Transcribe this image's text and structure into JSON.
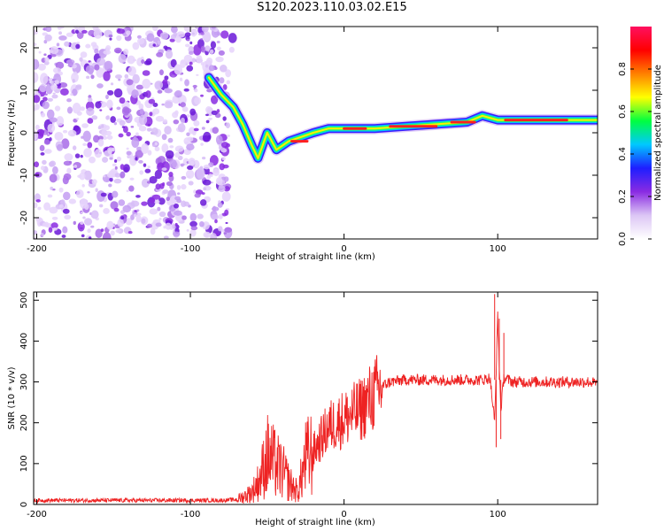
{
  "title": "S120.2023.110.03.02.E15",
  "chart_data": [
    {
      "type": "heatmap",
      "xlabel": "Height of straight line (km)",
      "ylabel": "Frequency (Hz)",
      "xlim": [
        -202,
        165
      ],
      "ylim": [
        -25,
        25
      ],
      "x_ticks": [
        -200,
        -100,
        0,
        100
      ],
      "y_ticks": [
        -20,
        -10,
        0,
        10,
        20
      ],
      "colorbar": {
        "label": "Normalized spectral amplitude",
        "range": [
          0,
          1
        ],
        "ticks": [
          0.0,
          0.2,
          0.4,
          0.6,
          0.8
        ],
        "stops": [
          "#ffffff",
          "#dcc6f5",
          "#8a2be2",
          "#1e1eff",
          "#00c8ff",
          "#00ff40",
          "#ffff00",
          "#ff8000",
          "#ff0000",
          "#ff1060"
        ]
      },
      "noise_region_x": [
        -202,
        -75
      ],
      "ridge": [
        {
          "x": -88,
          "y": 13
        },
        {
          "x": -80,
          "y": 9
        },
        {
          "x": -72,
          "y": 6
        },
        {
          "x": -66,
          "y": 2
        },
        {
          "x": -60,
          "y": -3
        },
        {
          "x": -56,
          "y": -6
        },
        {
          "x": -50,
          "y": 0
        },
        {
          "x": -44,
          "y": -4
        },
        {
          "x": -36,
          "y": -2
        },
        {
          "x": -28,
          "y": -1
        },
        {
          "x": -20,
          "y": 0
        },
        {
          "x": -10,
          "y": 1
        },
        {
          "x": 0,
          "y": 1
        },
        {
          "x": 20,
          "y": 1
        },
        {
          "x": 40,
          "y": 1.5
        },
        {
          "x": 60,
          "y": 2
        },
        {
          "x": 80,
          "y": 2.5
        },
        {
          "x": 90,
          "y": 4
        },
        {
          "x": 100,
          "y": 3
        },
        {
          "x": 120,
          "y": 3
        },
        {
          "x": 140,
          "y": 3
        },
        {
          "x": 165,
          "y": 3
        }
      ]
    },
    {
      "type": "line",
      "xlabel": "Height of straight line (km)",
      "ylabel": "SNR (10 * v/v)",
      "xlim": [
        -202,
        165
      ],
      "ylim": [
        0,
        520
      ],
      "x_ticks": [
        -200,
        -100,
        0,
        100
      ],
      "y_ticks": [
        0,
        100,
        200,
        300,
        400,
        500
      ],
      "series": [
        {
          "color": "#ee2222",
          "x": [
            -202,
            -180,
            -160,
            -140,
            -120,
            -100,
            -80,
            -70,
            -65,
            -60,
            -55,
            -50,
            -45,
            -40,
            -35,
            -30,
            -25,
            -20,
            -15,
            -10,
            -5,
            0,
            5,
            10,
            15,
            20,
            25,
            30,
            40,
            50,
            60,
            70,
            80,
            90,
            95,
            98,
            100,
            102,
            104,
            110,
            120,
            130,
            140,
            150,
            160,
            165
          ],
          "y": [
            10,
            10,
            10,
            10,
            10,
            10,
            10,
            12,
            20,
            30,
            60,
            120,
            100,
            80,
            50,
            30,
            110,
            130,
            160,
            190,
            200,
            210,
            220,
            230,
            250,
            270,
            290,
            300,
            305,
            305,
            305,
            305,
            305,
            305,
            310,
            200,
            460,
            230,
            310,
            300,
            300,
            300,
            300,
            300,
            300,
            295
          ]
        }
      ]
    }
  ]
}
